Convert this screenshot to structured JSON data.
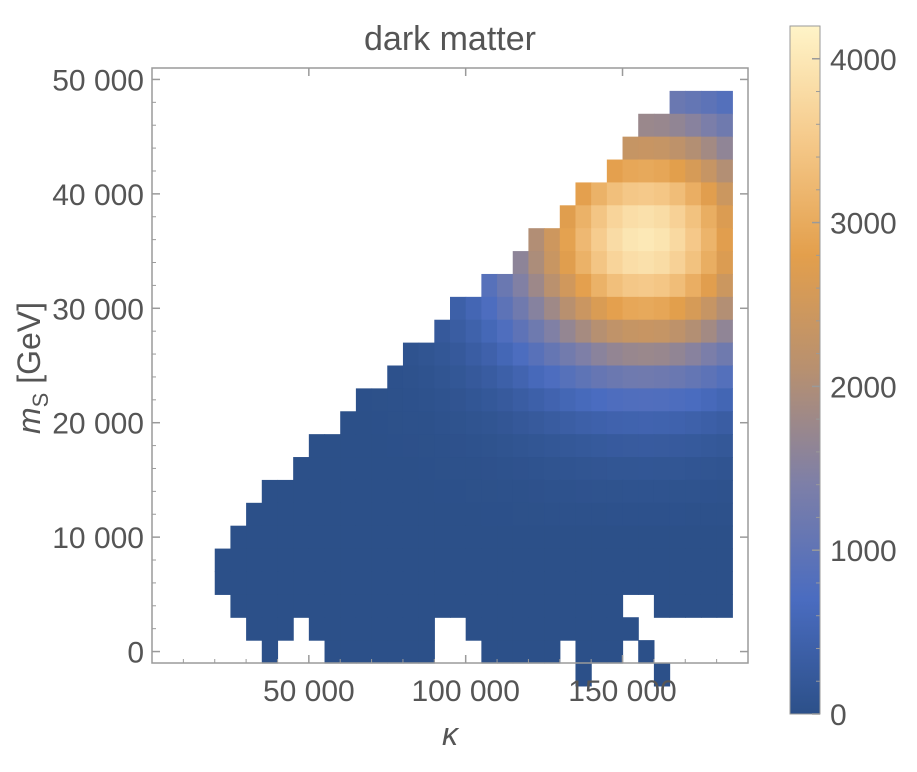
{
  "chart_data": {
    "type": "heatmap",
    "title": "dark matter",
    "xlabel": "κ",
    "ylabel_main": "m",
    "ylabel_sub": "S",
    "ylabel_unit": " [GeV]",
    "xlim": [
      0,
      190000
    ],
    "ylim": [
      -1000,
      51000
    ],
    "xticks": [
      {
        "value": 50000,
        "label": "50 000"
      },
      {
        "value": 100000,
        "label": "100 000"
      },
      {
        "value": 150000,
        "label": "150 000"
      }
    ],
    "yticks": [
      {
        "value": 0,
        "label": "0"
      },
      {
        "value": 10000,
        "label": "10 000"
      },
      {
        "value": 20000,
        "label": "20 000"
      },
      {
        "value": 30000,
        "label": "30 000"
      },
      {
        "value": 40000,
        "label": "40 000"
      },
      {
        "value": 50000,
        "label": "50 000"
      }
    ],
    "colorbar": {
      "min": 0,
      "max": 4200,
      "ticks": [
        {
          "value": 0,
          "label": "0"
        },
        {
          "value": 1000,
          "label": "1000"
        },
        {
          "value": 2000,
          "label": "2000"
        },
        {
          "value": 3000,
          "label": "3000"
        },
        {
          "value": 4000,
          "label": "4000"
        }
      ],
      "gradient": [
        "#2c5089",
        "#4a6cc0",
        "#7d7fa8",
        "#b79070",
        "#e39f4c",
        "#f5c98a",
        "#fff4c8"
      ]
    },
    "grid": {
      "x_start": 15000,
      "x_step": 5000,
      "y_start": 2000,
      "y_step": 2000,
      "rows": [
        {
          "y": 47000,
          "ranges": [
            [
              165000,
              185000
            ]
          ]
        },
        {
          "y": 45000,
          "ranges": [
            [
              155000,
              185000
            ]
          ]
        },
        {
          "y": 43000,
          "ranges": [
            [
              150000,
              185000
            ]
          ]
        },
        {
          "y": 41000,
          "ranges": [
            [
              145000,
              185000
            ]
          ]
        },
        {
          "y": 39000,
          "ranges": [
            [
              135000,
              185000
            ]
          ]
        },
        {
          "y": 37000,
          "ranges": [
            [
              130000,
              185000
            ]
          ]
        },
        {
          "y": 35000,
          "ranges": [
            [
              120000,
              185000
            ]
          ]
        },
        {
          "y": 33000,
          "ranges": [
            [
              115000,
              185000
            ]
          ]
        },
        {
          "y": 31000,
          "ranges": [
            [
              105000,
              185000
            ]
          ]
        },
        {
          "y": 29000,
          "ranges": [
            [
              95000,
              185000
            ]
          ]
        },
        {
          "y": 27000,
          "ranges": [
            [
              90000,
              185000
            ]
          ]
        },
        {
          "y": 25000,
          "ranges": [
            [
              80000,
              185000
            ]
          ]
        },
        {
          "y": 23000,
          "ranges": [
            [
              75000,
              185000
            ]
          ]
        },
        {
          "y": 21000,
          "ranges": [
            [
              65000,
              185000
            ]
          ]
        },
        {
          "y": 19000,
          "ranges": [
            [
              60000,
              185000
            ]
          ]
        },
        {
          "y": 17000,
          "ranges": [
            [
              50000,
              185000
            ]
          ]
        },
        {
          "y": 15000,
          "ranges": [
            [
              45000,
              185000
            ]
          ]
        },
        {
          "y": 13000,
          "ranges": [
            [
              35000,
              185000
            ]
          ]
        },
        {
          "y": 11000,
          "ranges": [
            [
              30000,
              185000
            ]
          ]
        },
        {
          "y": 9000,
          "ranges": [
            [
              25000,
              185000
            ]
          ]
        },
        {
          "y": 7000,
          "ranges": [
            [
              20000,
              185000
            ]
          ]
        },
        {
          "y": 5000,
          "ranges": [
            [
              20000,
              185000
            ]
          ]
        },
        {
          "y": 3000,
          "ranges": [
            [
              25000,
              150000
            ],
            [
              160000,
              185000
            ]
          ]
        },
        {
          "y": 1000,
          "ranges": [
            [
              30000,
              45000
            ],
            [
              50000,
              90000
            ],
            [
              100000,
              155000
            ]
          ]
        },
        {
          "y": -1000,
          "ranges": [
            [
              35000,
              40000
            ],
            [
              55000,
              90000
            ],
            [
              105000,
              130000
            ],
            [
              135000,
              150000
            ],
            [
              155000,
              160000
            ]
          ]
        },
        {
          "y": -3000,
          "ranges": [
            [
              135000,
              140000
            ],
            [
              160000,
              165000
            ]
          ]
        }
      ],
      "peak": {
        "x": 157000,
        "y": 36000,
        "value": 4000
      },
      "spread_x": 42000,
      "spread_y": 11000
    }
  }
}
